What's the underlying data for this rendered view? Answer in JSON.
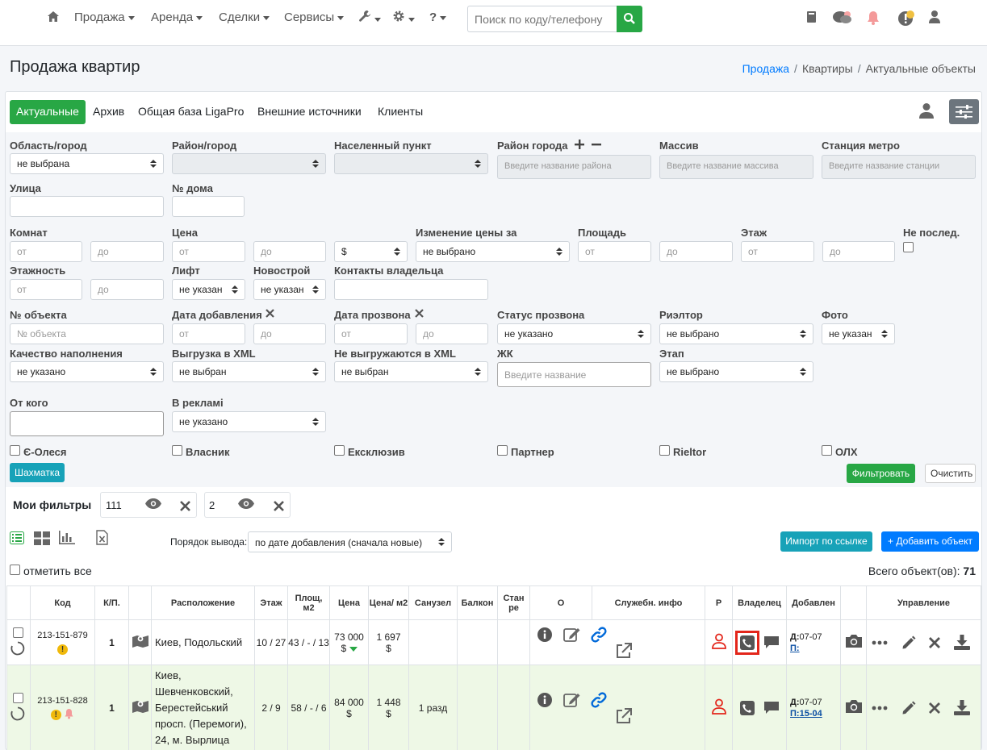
{
  "nav": {
    "items": [
      "Продажа",
      "Аренда",
      "Сделки",
      "Сервисы"
    ],
    "help": "?",
    "search_placeholder": "Поиск по коду/телефону"
  },
  "page": {
    "title": "Продажа квартир"
  },
  "breadcrumb": {
    "a": "Продажа",
    "b": "Квартиры",
    "c": "Актуальные объекты",
    "sep": "/"
  },
  "tabs": [
    "Актуальные",
    "Архив",
    "Общая база LigaPro",
    "Внешние источники",
    "Клиенты"
  ],
  "filters": {
    "labels": {
      "oblast": "Область/город",
      "raion": "Район/город",
      "punkt": "Населенный пункт",
      "raion_goroda": "Район города",
      "massiv": "Массив",
      "metro": "Станция метро",
      "ulica": "Улица",
      "dom": "№ дома",
      "komnat": "Комнат",
      "cena": "Цена",
      "izm": "Изменение цены за",
      "ploshad": "Площадь",
      "etazh": "Этаж",
      "neposl": "Не послед.",
      "etazhnost": "Этажность",
      "lift": "Лифт",
      "novostroy": "Новострой",
      "kontakty": "Контакты владельца",
      "nobj": "№ объекта",
      "data_dob": "Дата добавления",
      "data_prozv": "Дата прозвона",
      "status": "Статус прозвона",
      "rieltor": "Риэлтор",
      "foto": "Фото",
      "kachestvo": "Качество наполнения",
      "xml": "Выгрузка в XML",
      "nexml": "Не выгружаются в XML",
      "zhk": "ЖК",
      "etap": "Этап",
      "otkogo": "От кого",
      "vreklame": "В рекламі"
    },
    "values": {
      "oblast": "не выбрана",
      "currency": "$",
      "izm": "не выбрано",
      "lift": "не указан",
      "novostroy": "не указан",
      "status": "не указано",
      "rieltor": "не выбрано",
      "foto": "не указан",
      "kachestvo": "не указано",
      "xml": "не выбран",
      "nexml": "не выбран",
      "etap": "не выбрано",
      "vreklame": "не указано"
    },
    "placeholders": {
      "raion": "Введите название района",
      "massiv": "Введите название массива",
      "metro": "Введите название станции",
      "ot": "от",
      "do": "до",
      "nobj": "№ объекта",
      "zhk": "Введите название"
    },
    "checkboxes": [
      "Є-Олеся",
      "Власник",
      "Ексклюзив",
      "Партнер",
      "Rieltor",
      "ОЛХ"
    ],
    "btn_shah": "Шахматка",
    "btn_filter": "Фильтровать",
    "btn_clear": "Очистить"
  },
  "my_filters": {
    "label": "Мои фильтры",
    "items": [
      "111",
      "2"
    ]
  },
  "toolbar": {
    "order_label": "Порядок вывода:",
    "order_value": "по дате добавления (сначала новые)",
    "import": "Импорт по ссылке",
    "add": "+ Добавить объект",
    "select_all": "отметить все",
    "total_label": "Всего объект(ов):",
    "total": "71"
  },
  "table": {
    "headers": [
      "Код",
      "К/П.",
      "Расположение",
      "Этаж",
      "Площ, м2",
      "Цена",
      "Цена/ м2",
      "Санузел",
      "Балкон",
      "Стан ре",
      "О",
      "Служебн. инфо",
      "Р",
      "Владелец",
      "Добавлен",
      "Управление"
    ],
    "rows": [
      {
        "code": "213-151-879",
        "kp": "1",
        "location": "Киев, Подольский",
        "floor": "10 / 27",
        "area": "43 / - / 13",
        "price": "73 000",
        "cur": "$",
        "ppm": "1 697",
        "ppm_cur": "$",
        "sanuzel": "",
        "added_d": "Д:",
        "added_d_val": "07-07",
        "added_p": "П:",
        "added_p_val": ""
      },
      {
        "code": "213-151-828",
        "kp": "1",
        "location": "Киев, Шевченковский, Берестейський просп. (Перемоги), 24, м. Вырлица",
        "floor": "2 / 9",
        "area": "58 / - / 6",
        "price": "84 000",
        "cur": "$",
        "ppm": "1 448",
        "ppm_cur": "$",
        "sanuzel": "1 разд",
        "added_d": "Д:",
        "added_d_val": "07-07",
        "added_p": "П:",
        "added_p_val": "15-04"
      }
    ]
  },
  "colors": {
    "green": "#28a745",
    "teal": "#17a2b8",
    "blue": "#007bff",
    "red": "#e3261b"
  }
}
